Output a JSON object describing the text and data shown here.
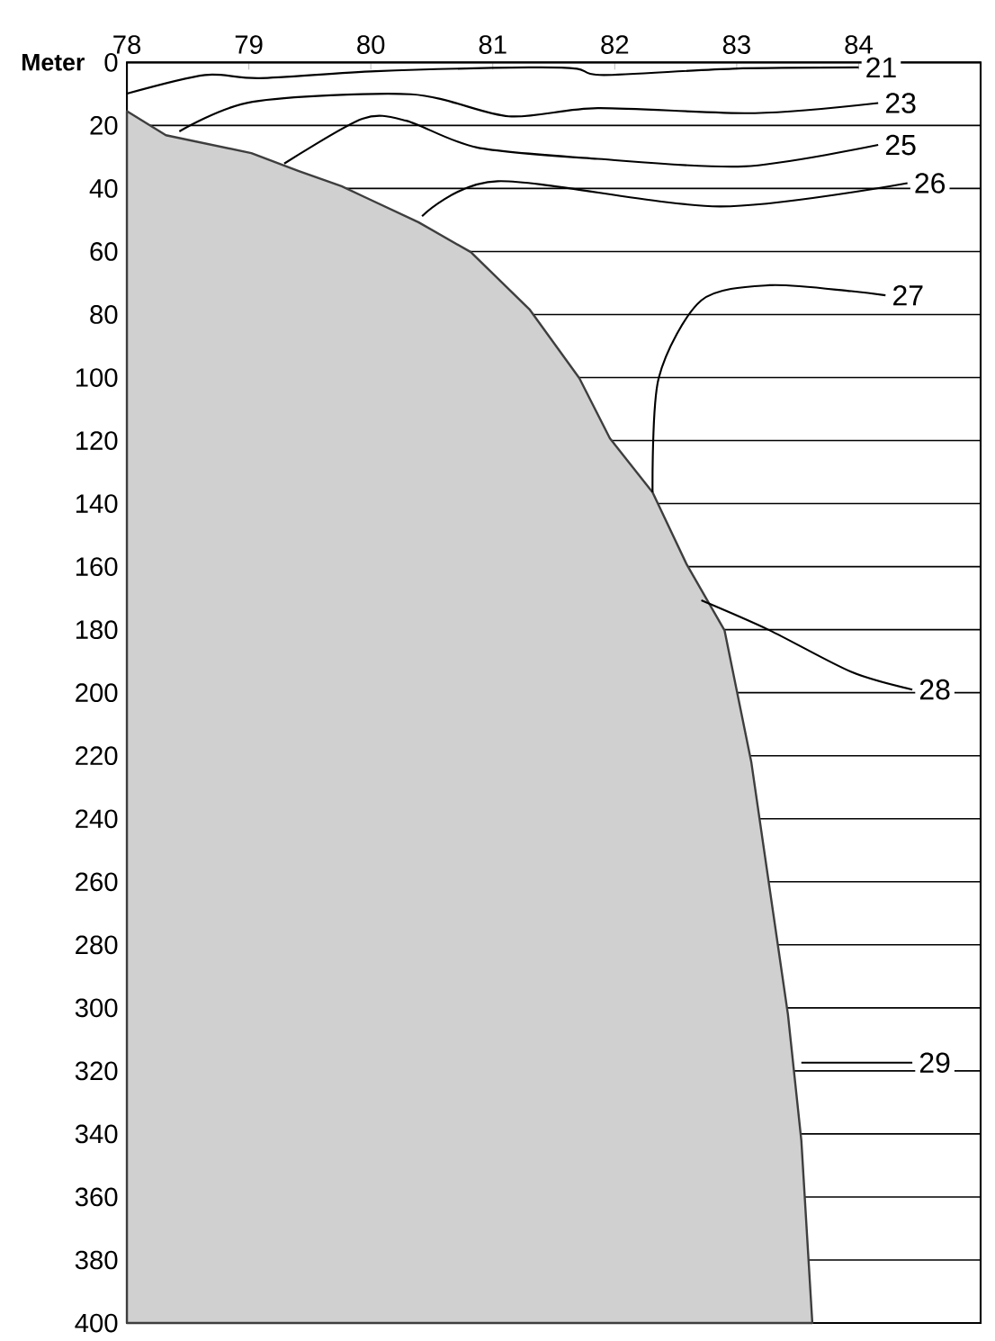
{
  "chart_data": {
    "type": "line",
    "ylabel": "Meter",
    "xlim": [
      78,
      85
    ],
    "ylim": [
      400,
      0
    ],
    "xticks": [
      78,
      79,
      80,
      81,
      82,
      83,
      84
    ],
    "yticks": [
      0,
      20,
      40,
      60,
      80,
      100,
      120,
      140,
      160,
      180,
      200,
      220,
      240,
      260,
      280,
      300,
      320,
      340,
      360,
      380,
      400
    ],
    "grid": "y",
    "series": [
      {
        "type": "area",
        "color": "#d0d0d0",
        "x": [
          78,
          78.32,
          79.02,
          79.41,
          79.76,
          79.97,
          80.39,
          80.82,
          81.3,
          81.71,
          81.96,
          82.31,
          82.59,
          82.9,
          83.12,
          83.27,
          83.42,
          83.53,
          83.62,
          78
        ],
        "values": [
          15.5,
          23.1,
          28.8,
          34.5,
          39.3,
          43.1,
          50.7,
          60.2,
          78.3,
          100.2,
          119.3,
          136.4,
          159.3,
          180.2,
          222.1,
          262.1,
          302.1,
          342.1,
          400,
          400
        ]
      },
      {
        "name": "21",
        "color": "#000000",
        "x": [
          78,
          78.64,
          79.09,
          80.04,
          81.3,
          81.69,
          81.91,
          82.97,
          84
        ],
        "values": [
          9.9,
          4.0,
          5.0,
          2.8,
          1.6,
          2.0,
          4.0,
          2.0,
          1.6
        ]
      },
      {
        "name": "23",
        "color": "#000000",
        "x": [
          78.43,
          79.03,
          80.33,
          81.13,
          81.86,
          83.15,
          84.16
        ],
        "values": [
          21.9,
          12.5,
          10.1,
          17.1,
          14.5,
          16.1,
          12.9
        ]
      },
      {
        "name": "25",
        "color": "#000000",
        "x": [
          79.29,
          79.93,
          80.29,
          80.87,
          81.86,
          83.06,
          84.16
        ],
        "values": [
          32.1,
          17.9,
          18.5,
          27,
          30.6,
          33,
          26.2
        ]
      },
      {
        "name": "26",
        "color": "#000000",
        "x": [
          80.42,
          81.04,
          82.86,
          84.4
        ],
        "values": [
          48.8,
          37.7,
          45.7,
          38.3
        ]
      },
      {
        "name": "27",
        "color": "#000000",
        "x": [
          82.31,
          82.36,
          82.71,
          83.27,
          83.94,
          84.22
        ],
        "values": [
          136.4,
          100.2,
          75.5,
          70.7,
          72.6,
          73.9
        ]
      },
      {
        "name": "28",
        "color": "#000000",
        "x": [
          82.71,
          83.27,
          83.94,
          84.44
        ],
        "values": [
          170.7,
          180.2,
          193.4,
          199
        ]
      },
      {
        "name": "29",
        "color": "#000000",
        "x": [
          83.53,
          84.44
        ],
        "values": [
          317.4,
          317.4
        ]
      }
    ]
  }
}
